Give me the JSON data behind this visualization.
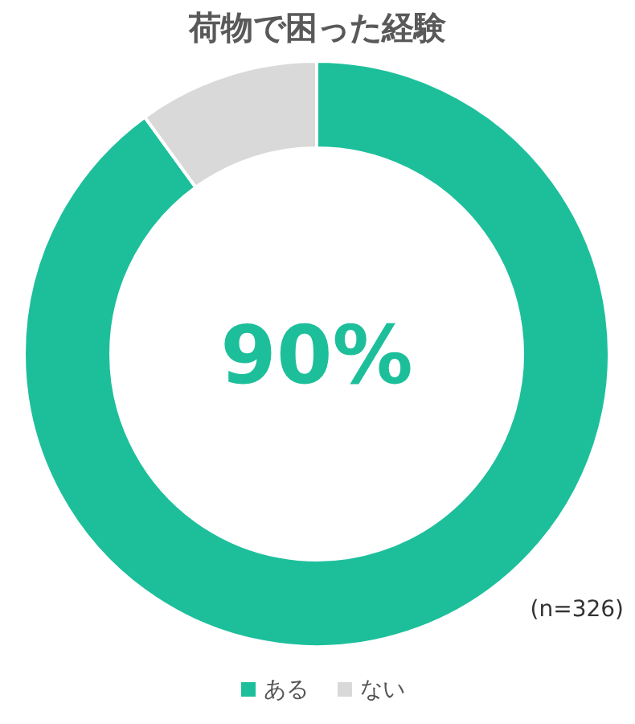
{
  "chart_data": {
    "type": "donut",
    "title": "荷物で困った経験",
    "categories": [
      "ある",
      "ない"
    ],
    "values": [
      90,
      10
    ],
    "colors": [
      "#1dbf9b",
      "#d9d9d9"
    ],
    "legend": "bottom",
    "annotations": [
      "90%",
      "(n=326)"
    ]
  }
}
